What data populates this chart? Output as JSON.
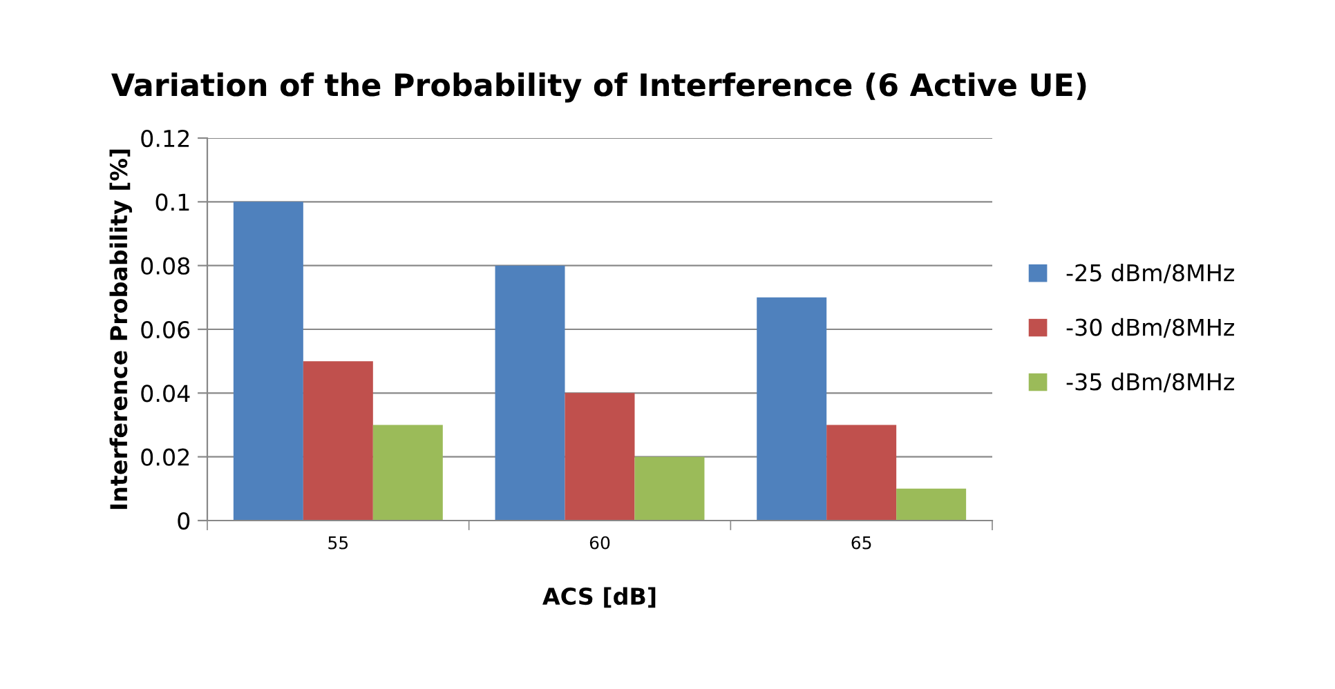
{
  "chart_data": {
    "type": "bar",
    "title": "Variation of the Probability of Interference (6 Active UE)",
    "xlabel": "ACS [dB]",
    "ylabel": "Interference Probability [%]",
    "categories": [
      "55",
      "60",
      "65"
    ],
    "series": [
      {
        "name": "-25 dBm/8MHz",
        "color": "#4f81bd",
        "values": [
          0.1,
          0.08,
          0.07
        ]
      },
      {
        "name": "-30 dBm/8MHz",
        "color": "#c0504d",
        "values": [
          0.05,
          0.04,
          0.03
        ]
      },
      {
        "name": "-35 dBm/8MHz",
        "color": "#9bbb59",
        "values": [
          0.03,
          0.02,
          0.01
        ]
      }
    ],
    "ylim": [
      0,
      0.12
    ],
    "yticks": [
      {
        "value": 0,
        "label": "0"
      },
      0.02,
      0.04,
      0.06,
      0.08,
      {
        "value": 0.1,
        "label": "0.1"
      },
      0.12
    ],
    "grid": "y",
    "legend": "right"
  }
}
